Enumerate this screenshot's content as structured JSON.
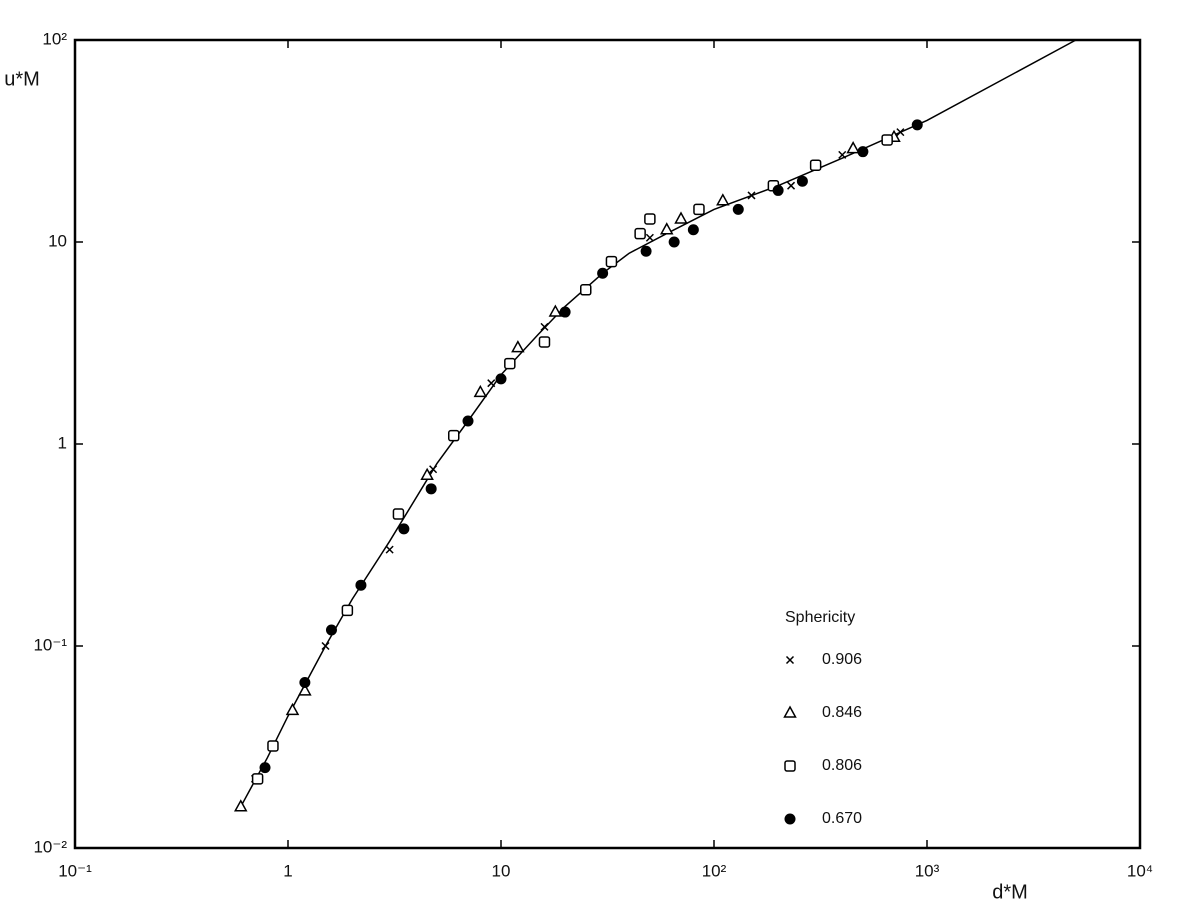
{
  "chart_data": {
    "type": "scatter",
    "xlabel": "d*M",
    "ylabel": "u*M",
    "xscale": "log",
    "yscale": "log",
    "grid": false,
    "xlim": [
      0.1,
      10000
    ],
    "ylim": [
      0.01,
      100
    ],
    "xticks": [
      {
        "value": 0.1,
        "label": "10⁻¹"
      },
      1,
      10,
      {
        "value": 100,
        "label": "10²"
      },
      {
        "value": 1000,
        "label": "10³"
      },
      {
        "value": 10000,
        "label": "10⁴"
      }
    ],
    "yticks": [
      {
        "value": 0.01,
        "label": "10⁻²"
      },
      {
        "value": 0.1,
        "label": "10⁻¹"
      },
      1,
      10,
      {
        "value": 100,
        "label": "10²"
      }
    ],
    "legend_title": "Sphericity",
    "legend_position": "lower right",
    "curve": {
      "color": "#000000",
      "x": [
        0.6,
        0.8,
        1,
        1.5,
        2,
        3,
        5,
        7,
        10,
        15,
        20,
        30,
        40,
        60,
        100,
        200,
        400,
        1000,
        5000
      ],
      "y": [
        0.016,
        0.028,
        0.045,
        0.1,
        0.17,
        0.33,
        0.8,
        1.3,
        2.2,
        3.5,
        4.8,
        7,
        8.8,
        11,
        14.5,
        19,
        26,
        40,
        100
      ]
    },
    "series": [
      {
        "name": "0.906",
        "color": "#000000",
        "marker": "x",
        "x": [
          0.7,
          1.5,
          3,
          4.8,
          9,
          16,
          30,
          50,
          150,
          230,
          400,
          750
        ],
        "values": [
          0.022,
          0.1,
          0.3,
          0.75,
          2,
          3.8,
          7,
          10.5,
          17,
          19,
          27,
          35
        ]
      },
      {
        "name": "0.846",
        "color": "#000000",
        "marker": "triangle",
        "x": [
          0.6,
          1.05,
          1.2,
          4.5,
          8,
          12,
          18,
          60,
          70,
          110,
          450,
          700
        ],
        "values": [
          0.016,
          0.048,
          0.06,
          0.7,
          1.8,
          3,
          4.5,
          11.5,
          13,
          16,
          29,
          33
        ]
      },
      {
        "name": "0.806",
        "color": "#000000",
        "marker": "square",
        "x": [
          0.72,
          0.85,
          1.9,
          3.3,
          6,
          11,
          16,
          25,
          33,
          45,
          50,
          85,
          190,
          300,
          650
        ],
        "values": [
          0.022,
          0.032,
          0.15,
          0.45,
          1.1,
          2.5,
          3.2,
          5.8,
          8,
          11,
          13,
          14.5,
          19,
          24,
          32
        ]
      },
      {
        "name": "0.670",
        "color": "#000000",
        "marker": "circle",
        "x": [
          0.78,
          1.2,
          1.6,
          2.2,
          3.5,
          4.7,
          7,
          10,
          20,
          30,
          48,
          65,
          80,
          130,
          200,
          260,
          500,
          900
        ],
        "values": [
          0.025,
          0.066,
          0.12,
          0.2,
          0.38,
          0.6,
          1.3,
          2.1,
          4.5,
          7,
          9,
          10,
          11.5,
          14.5,
          18,
          20,
          28,
          38
        ]
      }
    ]
  }
}
